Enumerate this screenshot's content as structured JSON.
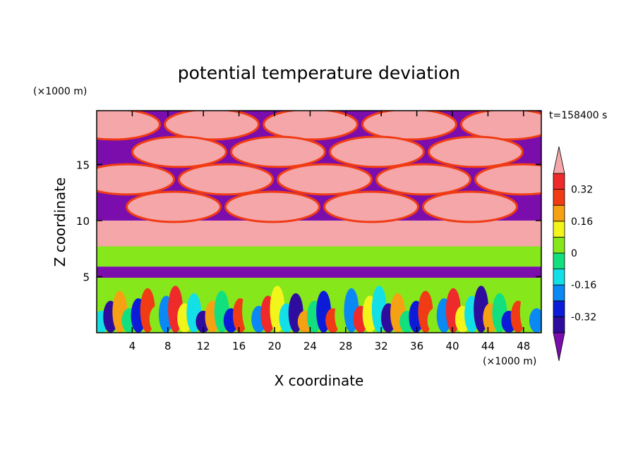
{
  "chart_data": {
    "type": "heatmap",
    "title": "potential temperature deviation",
    "xlabel": "X coordinate",
    "ylabel": "Z coordinate",
    "x_unit": "(×1000 m)",
    "y_unit": "(×1000 m)",
    "time_label": "t=158400 s",
    "xlim": [
      0,
      50
    ],
    "ylim": [
      0,
      19.8
    ],
    "x_ticks": [
      4,
      8,
      12,
      16,
      20,
      24,
      28,
      32,
      36,
      40,
      44,
      48
    ],
    "y_ticks": [
      5,
      10,
      15
    ],
    "colorbar": {
      "levels": [
        -0.4,
        -0.32,
        -0.24,
        -0.16,
        -0.08,
        0,
        0.08,
        0.16,
        0.24,
        0.32,
        0.4
      ],
      "tick_labels": [
        "-0.32",
        "-0.16",
        "0",
        "0.16",
        "0.32"
      ],
      "tick_values": [
        -0.32,
        -0.16,
        0,
        0.16,
        0.32
      ],
      "colors": [
        "#7a0dac",
        "#2e0c9e",
        "#0c1bd8",
        "#0a88f4",
        "#13e0e6",
        "#12e07e",
        "#86e81a",
        "#f2f51a",
        "#f6a114",
        "#f03b14",
        "#ee2a2a",
        "#f4a6a8"
      ],
      "extend": "both"
    },
    "bands": [
      {
        "z_range": [
          0,
          4.9
        ],
        "pattern": "turbulent mixed values"
      },
      {
        "z_range": [
          4.9,
          5.9
        ],
        "value": -0.44
      },
      {
        "z_range": [
          5.9,
          7.7
        ],
        "value": 0.04
      },
      {
        "z_range": [
          7.7,
          10.0
        ],
        "value": 0.44
      },
      {
        "z_range": [
          10.0,
          19.8
        ],
        "pattern": "alternating large cells of -0.44 and 0.44"
      }
    ]
  }
}
